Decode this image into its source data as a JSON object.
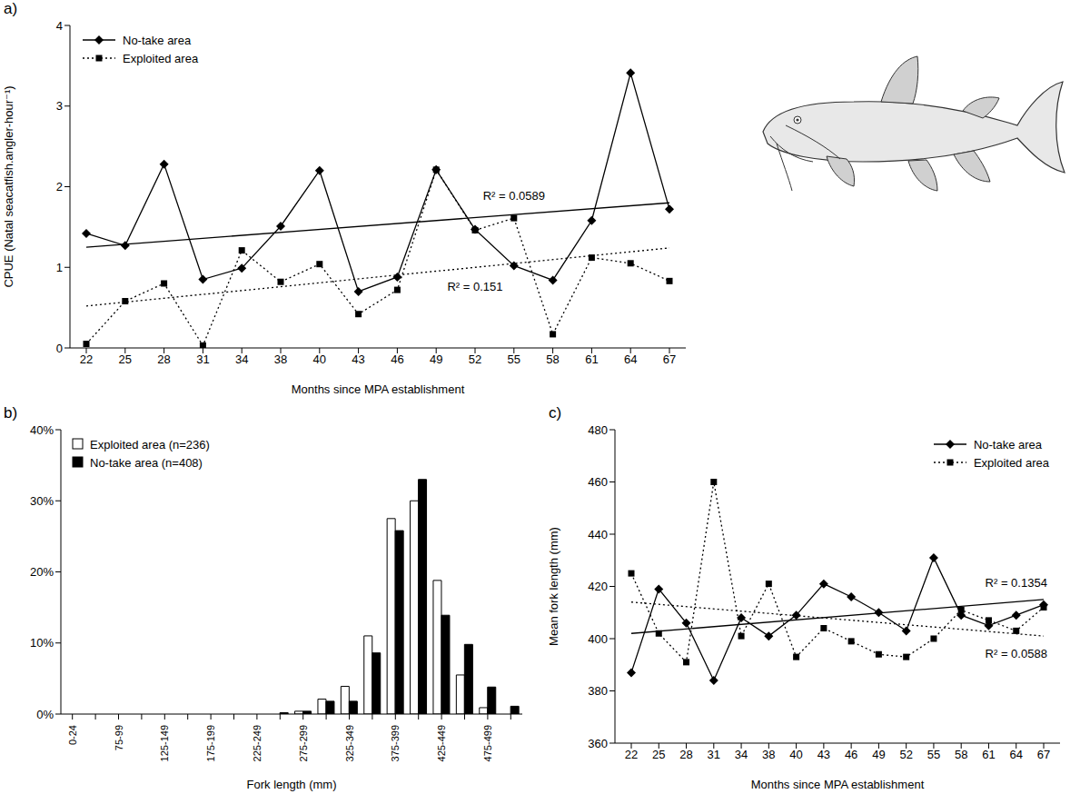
{
  "chart_data": [
    {
      "panel": "a)",
      "type": "line",
      "x_label": "Months since MPA establishment",
      "y_label": "CPUE (Natal seacatfish.angler-hour⁻¹)",
      "categories": [
        "22",
        "25",
        "28",
        "31",
        "34",
        "38",
        "40",
        "43",
        "46",
        "49",
        "52",
        "55",
        "58",
        "61",
        "64",
        "67"
      ],
      "ylim": [
        0,
        4
      ],
      "yticks": [
        0,
        1,
        2,
        3,
        4
      ],
      "legend": "top-left",
      "series": [
        {
          "name": "No-take area",
          "color": "#000000",
          "marker": "diamond",
          "line_style": "solid",
          "values": [
            1.42,
            1.27,
            2.28,
            0.85,
            0.99,
            1.51,
            2.2,
            0.7,
            0.88,
            2.21,
            1.47,
            1.02,
            0.84,
            1.58,
            3.41,
            1.72
          ],
          "trend": [
            1.25,
            1.8
          ],
          "trend_label": "R² = 0.0589"
        },
        {
          "name": "Exploited area",
          "color": "#000000",
          "marker": "square",
          "line_style": "dotted",
          "values": [
            0.05,
            0.58,
            0.8,
            0.03,
            1.21,
            0.82,
            1.04,
            0.42,
            0.72,
            2.21,
            1.46,
            1.61,
            0.17,
            1.12,
            1.05,
            0.83
          ],
          "trend": [
            0.52,
            1.24
          ],
          "trend_label": "R² = 0.151"
        }
      ]
    },
    {
      "panel": "b)",
      "type": "bar",
      "x_label": "Fork length (mm)",
      "categories": [
        "0-24",
        null,
        "75-99",
        null,
        "125-149",
        null,
        "175-199",
        null,
        "225-249",
        null,
        "275-299",
        null,
        "325-349",
        null,
        "375-399",
        null,
        "425-449",
        null,
        "475-499",
        null
      ],
      "ylim": [
        0,
        40
      ],
      "yticks": [
        {
          "value": 0,
          "label": "0%"
        },
        {
          "value": 10,
          "label": "10%"
        },
        {
          "value": 20,
          "label": "20%"
        },
        {
          "value": 30,
          "label": "30%"
        },
        {
          "value": 40,
          "label": "40%"
        }
      ],
      "legend": "top-left",
      "series": [
        {
          "name": "Exploited area (n=236)",
          "color": "#ffffff",
          "values": [
            0,
            0,
            0,
            0,
            0,
            0,
            0,
            0,
            0,
            0,
            0.4,
            2.1,
            3.9,
            11,
            27.5,
            30,
            18.8,
            5.5,
            0.9,
            0
          ]
        },
        {
          "name": "No-take area (n=408)",
          "color": "#000000",
          "values": [
            0,
            0,
            0,
            0,
            0,
            0,
            0,
            0,
            0,
            0.2,
            0.4,
            1.8,
            1.8,
            8.6,
            25.8,
            33,
            13.9,
            9.8,
            3.8,
            1.1
          ]
        }
      ]
    },
    {
      "panel": "c)",
      "type": "line",
      "x_label": "Months since MPA establishment",
      "y_label": "Mean fork length (mm)",
      "categories": [
        "22",
        "25",
        "28",
        "31",
        "34",
        "38",
        "40",
        "43",
        "46",
        "49",
        "52",
        "55",
        "58",
        "61",
        "64",
        "67"
      ],
      "ylim": [
        360,
        480
      ],
      "yticks": [
        360,
        380,
        400,
        420,
        440,
        460,
        480
      ],
      "legend": "top-right",
      "series": [
        {
          "name": "No-take area",
          "color": "#000000",
          "marker": "diamond",
          "line_style": "solid",
          "values": [
            387,
            419,
            406,
            384,
            408,
            401,
            409,
            421,
            416,
            410,
            403,
            431,
            409,
            405,
            409,
            413
          ],
          "trend": [
            402,
            415
          ],
          "trend_label": "R² = 0.1354"
        },
        {
          "name": "Exploited area",
          "color": "#000000",
          "marker": "square",
          "line_style": "dotted",
          "values": [
            425,
            402,
            391,
            460,
            401,
            421,
            393,
            404,
            399,
            394,
            393,
            400,
            411,
            407,
            403,
            412
          ],
          "trend": [
            414,
            401
          ],
          "trend_label": "R² = 0.0588"
        }
      ]
    }
  ]
}
